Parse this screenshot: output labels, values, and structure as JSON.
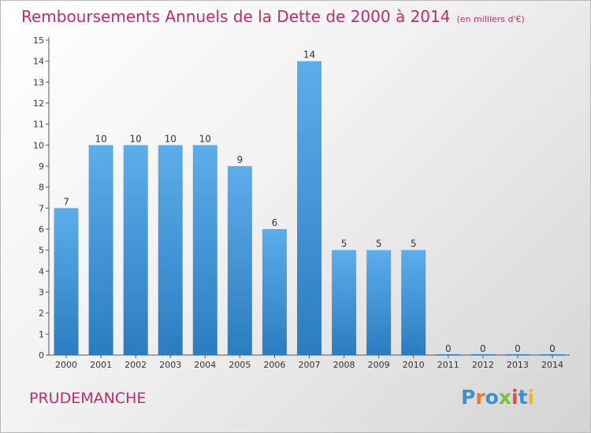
{
  "header": {
    "title": "Remboursements Annuels de la Dette de 2000 à 2014",
    "subtitle": "(en milliers d'€)"
  },
  "footer": {
    "commune": "PRUDEMANCHE",
    "logo_text": "Proxiti",
    "logo_colors": [
      "#3a8fd6",
      "#e8762b",
      "#3a8fd6",
      "#7bbf3a",
      "#e34d3b",
      "#3a8fd6",
      "#f0b428"
    ]
  },
  "colors": {
    "title": "#c02c6a",
    "bar_light": "#5dadeb",
    "bar_dark": "#2a7dc0",
    "axis": "#555555"
  },
  "chart_data": {
    "type": "bar",
    "title": "Remboursements Annuels de la Dette de 2000 à 2014",
    "subtitle": "(en milliers d'€)",
    "categories": [
      "2000",
      "2001",
      "2002",
      "2003",
      "2004",
      "2005",
      "2006",
      "2007",
      "2008",
      "2009",
      "2010",
      "2011",
      "2012",
      "2013",
      "2014"
    ],
    "values": [
      7,
      10,
      10,
      10,
      10,
      9,
      6,
      14,
      5,
      5,
      5,
      0,
      0,
      0,
      0
    ],
    "ylim": [
      0,
      15
    ],
    "yticks": [
      "0",
      "1",
      "2",
      "3",
      "4",
      "5",
      "6",
      "7",
      "8",
      "9",
      "10",
      "11",
      "12",
      "13",
      "14",
      "15"
    ],
    "grid": false,
    "legend": "none"
  }
}
